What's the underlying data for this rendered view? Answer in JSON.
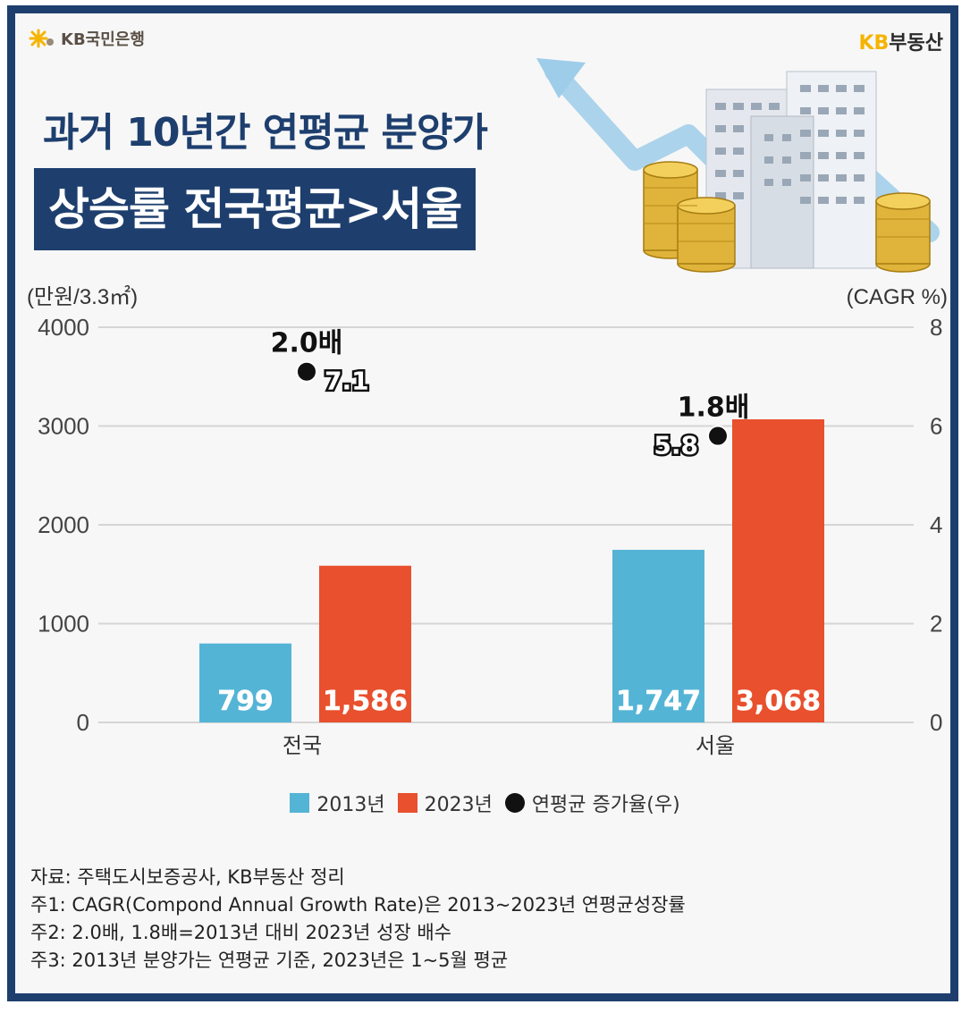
{
  "header": {
    "brand_left": "KB국민은행",
    "brand_right_kb": "KB",
    "brand_right_rest": "부동산",
    "title_line1": "과거 10년간 연평균 분양가",
    "title_line2": "상승률 전국평균>서울"
  },
  "chart_data": {
    "type": "bar",
    "categories": [
      "전국",
      "서울"
    ],
    "series": [
      {
        "name": "2013년",
        "values": [
          799,
          1747
        ],
        "labels": [
          "799",
          "1,747"
        ],
        "color": "#54b4d6"
      },
      {
        "name": "2023년",
        "values": [
          1586,
          3068
        ],
        "labels": [
          "1,586",
          "3,068"
        ],
        "color": "#e8502e"
      }
    ],
    "cagr": {
      "name": "연평균 증가율(우)",
      "values": [
        7.1,
        5.8
      ],
      "labels": [
        "7.1",
        "5.8"
      ],
      "color": "#111111"
    },
    "multipliers": [
      "2.0배",
      "1.8배"
    ],
    "ylabel_left": "(만원/3.3㎡)",
    "ylabel_right": "(CAGR %)",
    "ylim_left": [
      0,
      4000
    ],
    "yticks_left": [
      0,
      1000,
      2000,
      3000,
      4000
    ],
    "ylim_right": [
      0,
      8
    ],
    "yticks_right": [
      0,
      2,
      4,
      6,
      8
    ],
    "grid": true,
    "legend_position": "bottom"
  },
  "notes": [
    "자료: 주택도시보증공사, KB부동산 정리",
    "주1: CAGR(Compond Annual Growth Rate)은 2013~2023년 연평균성장률",
    "주2: 2.0배, 1.8배=2013년 대비 2023년 성장 배수",
    "주3: 2013년 분양가는 연평균 기준, 2023년은 1~5월 평균"
  ]
}
